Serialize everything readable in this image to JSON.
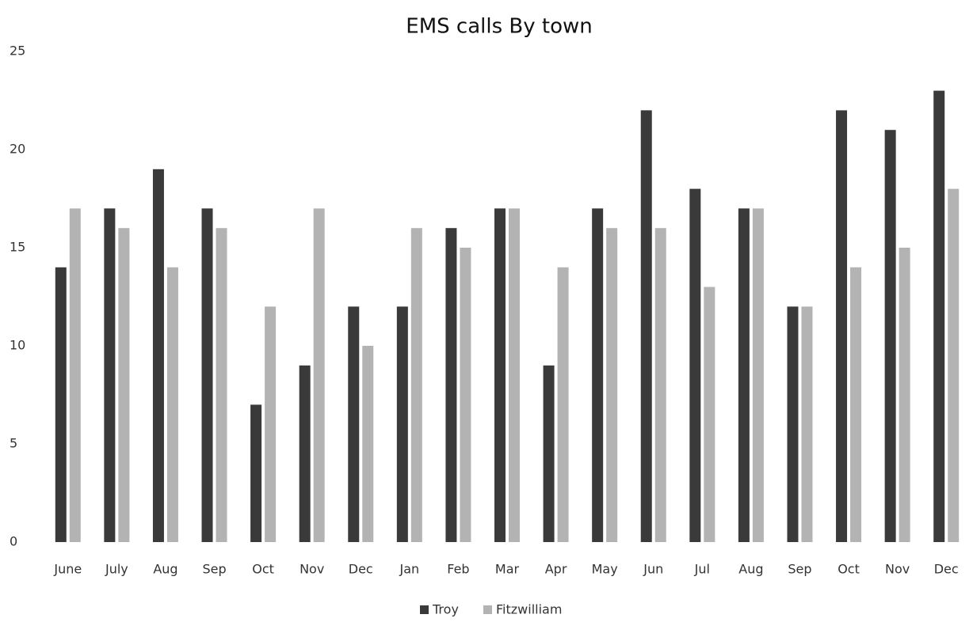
{
  "chart_data": {
    "type": "bar",
    "title": "EMS calls By town",
    "categories": [
      "June",
      "July",
      "Aug",
      "Sep",
      "Oct",
      "Nov",
      "Dec",
      "Jan",
      "Feb",
      "Mar",
      "Apr",
      "May",
      "Jun",
      "Jul",
      "Aug",
      "Sep",
      "Oct",
      "Nov",
      "Dec"
    ],
    "series": [
      {
        "name": "Troy",
        "color": "#3a3a3a",
        "values": [
          14,
          17,
          19,
          17,
          7,
          9,
          12,
          12,
          16,
          17,
          9,
          17,
          22,
          18,
          17,
          12,
          22,
          21,
          23
        ]
      },
      {
        "name": "Fitzwilliam",
        "color": "#b3b3b3",
        "values": [
          17,
          16,
          14,
          16,
          12,
          17,
          10,
          16,
          15,
          17,
          14,
          16,
          16,
          13,
          17,
          12,
          14,
          15,
          18
        ]
      }
    ],
    "ylim": [
      0,
      25
    ],
    "yticks": [
      0,
      5,
      10,
      15,
      20,
      25
    ],
    "grid": false,
    "legend": "bottom"
  }
}
